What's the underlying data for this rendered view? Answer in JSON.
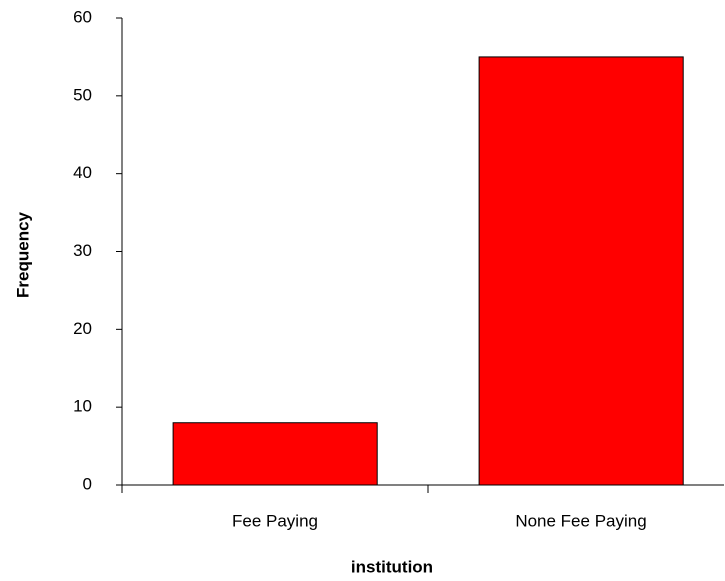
{
  "chart_data": {
    "type": "bar",
    "x_label": "institution",
    "y_label": "Frequency",
    "categories": [
      "Fee Paying",
      "None Fee Paying"
    ],
    "values": [
      8,
      55
    ],
    "color": "#ff0000",
    "ylim": [
      0,
      60
    ],
    "yticks": [
      0,
      10,
      20,
      30,
      40,
      50,
      60
    ],
    "grid": false
  }
}
